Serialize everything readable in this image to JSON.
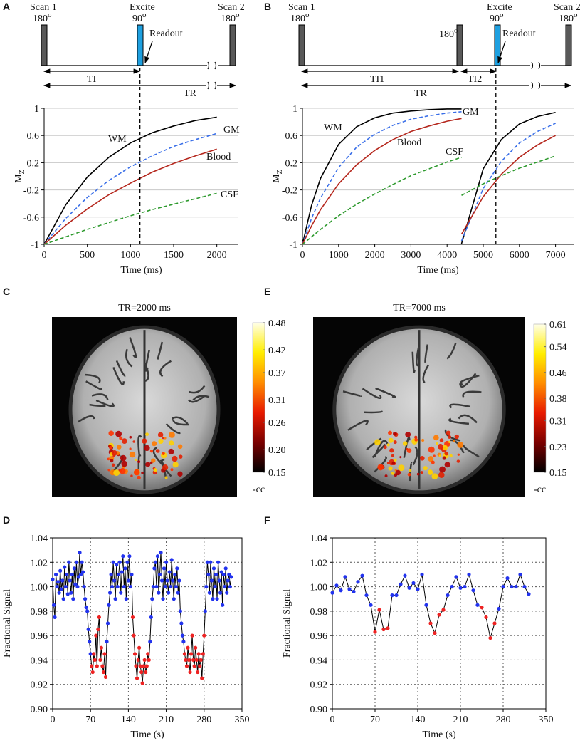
{
  "panel_labels": [
    "A",
    "B",
    "C",
    "E",
    "D",
    "F"
  ],
  "diagrams": [
    {
      "scan1": "Scan 1",
      "scan1_angle": "180",
      "excite": "Excite",
      "excite_angle": "90",
      "readout": "Readout",
      "scan2": "Scan 2",
      "scan2_angle": "180",
      "degree": "o",
      "ti": "TI",
      "tr": "TR"
    },
    {
      "scan1": "Scan 1",
      "scan1_angle": "180",
      "mid_angle": "180",
      "excite": "Excite",
      "excite_angle": "90",
      "readout": "Readout",
      "scan2": "Scan 2",
      "scan2_angle": "180",
      "degree": "o",
      "ti1": "TI1",
      "ti2": "TI2",
      "tr": "TR"
    }
  ],
  "chart_data": [
    {
      "type": "line",
      "x": [
        0,
        250,
        500,
        750,
        1000,
        1250,
        1500,
        1750,
        2000
      ],
      "series": [
        {
          "name": "WM",
          "color": "#000000",
          "dash": false,
          "values": [
            -1,
            -0.42,
            -0.01,
            0.28,
            0.49,
            0.64,
            0.74,
            0.82,
            0.87
          ]
        },
        {
          "name": "GM",
          "color": "#3a6fe8",
          "dash": true,
          "values": [
            -1,
            -0.62,
            -0.31,
            -0.06,
            0.14,
            0.3,
            0.44,
            0.54,
            0.63
          ]
        },
        {
          "name": "Blood",
          "color": "#b5271d",
          "dash": false,
          "values": [
            -1,
            -0.72,
            -0.48,
            -0.27,
            -0.1,
            0.06,
            0.19,
            0.3,
            0.4
          ]
        },
        {
          "name": "CSF",
          "color": "#2e9a2e",
          "dash": true,
          "values": [
            -1,
            -0.89,
            -0.78,
            -0.68,
            -0.58,
            -0.49,
            -0.41,
            -0.33,
            -0.25
          ]
        }
      ],
      "vline": 1110,
      "xlim": [
        0,
        2250
      ],
      "xticks": [
        0,
        500,
        1000,
        1500,
        2000
      ],
      "ylim": [
        -1,
        1
      ],
      "yticks": [
        -1,
        -0.6,
        -0.2,
        0.2,
        0.6,
        1
      ],
      "grid": "y",
      "grid_line": "solid",
      "frame": "axes",
      "xlabel": "Time (ms)",
      "ylabel": "M",
      "ylabel_sub": "Z"
    },
    {
      "type": "line",
      "x": [
        0,
        250,
        500,
        1000,
        1500,
        2000,
        2500,
        3000,
        3500,
        4000,
        4400,
        4400,
        4400,
        5000,
        5500,
        6000,
        6500,
        7000
      ],
      "series": [
        {
          "name": "WM",
          "color": "#000000",
          "dash": false,
          "values": [
            -1,
            -0.43,
            -0.03,
            0.47,
            0.73,
            0.86,
            0.93,
            0.96,
            0.98,
            0.99,
            0.99,
            null,
            -0.99,
            0.11,
            0.54,
            0.77,
            0.88,
            0.94
          ]
        },
        {
          "name": "GM",
          "color": "#3a6fe8",
          "dash": true,
          "values": [
            -1,
            -0.62,
            -0.32,
            0.13,
            0.43,
            0.62,
            0.75,
            0.84,
            0.89,
            0.93,
            0.95,
            null,
            -0.95,
            -0.18,
            0.22,
            0.49,
            0.66,
            0.78
          ]
        },
        {
          "name": "Blood",
          "color": "#b5271d",
          "dash": false,
          "values": [
            -1,
            -0.73,
            -0.49,
            -0.11,
            0.17,
            0.38,
            0.54,
            0.66,
            0.74,
            0.81,
            0.85,
            null,
            -0.85,
            -0.3,
            0.03,
            0.28,
            0.46,
            0.6
          ]
        },
        {
          "name": "CSF",
          "color": "#2e9a2e",
          "dash": true,
          "values": [
            -1,
            -0.89,
            -0.78,
            -0.58,
            -0.41,
            -0.26,
            -0.12,
            0.01,
            0.11,
            0.21,
            0.28,
            null,
            -0.28,
            -0.11,
            0.01,
            0.12,
            0.21,
            0.3
          ]
        }
      ],
      "vline": 5350,
      "xlim": [
        0,
        7500
      ],
      "xticks": [
        0,
        1000,
        2000,
        3000,
        4000,
        5000,
        6000,
        7000
      ],
      "ylim": [
        -1,
        1
      ],
      "yticks": [
        -1,
        -0.6,
        -0.2,
        0.2,
        0.6,
        1
      ],
      "grid": "y",
      "grid_line": "solid",
      "frame": "axes",
      "xlabel": "Time (ms)",
      "ylabel": "M",
      "ylabel_sub": "Z"
    },
    {
      "type": "heatmap",
      "title": "TR=2000 ms",
      "clim": [
        0.15,
        0.48
      ],
      "cticks": [
        0.15,
        {
          "value": 0.2,
          "label": "0.20"
        },
        0.26,
        0.31,
        0.37,
        0.42,
        0.48
      ],
      "clabel": "-cc",
      "colormap": [
        "#000000",
        "#7a0000",
        "#e81a00",
        "#ff8c00",
        "#ffee00",
        "#ffffe8"
      ]
    },
    {
      "type": "heatmap",
      "title": "TR=7000 ms",
      "clim": [
        0.15,
        0.61
      ],
      "cticks": [
        0.15,
        0.23,
        0.31,
        0.38,
        0.46,
        0.54,
        0.61
      ],
      "clabel": "-cc",
      "colormap": [
        "#000000",
        "#7a0000",
        "#e81a00",
        "#ff8c00",
        "#ffee00",
        "#ffffe8"
      ]
    },
    {
      "type": "line",
      "color": "#000000",
      "x": [
        0,
        2,
        4,
        6,
        8,
        10,
        12,
        14,
        16,
        18,
        20,
        22,
        24,
        26,
        28,
        30,
        32,
        34,
        36,
        38,
        40,
        42,
        44,
        46,
        48,
        50,
        52,
        54,
        56,
        58,
        60,
        62,
        64,
        66,
        68,
        70,
        72,
        74,
        76,
        78,
        80,
        82,
        84,
        86,
        88,
        90,
        92,
        94,
        96,
        98,
        100,
        102,
        104,
        106,
        108,
        110,
        112,
        114,
        116,
        118,
        120,
        122,
        124,
        126,
        128,
        130,
        132,
        134,
        136,
        138,
        140,
        142,
        144,
        146,
        148,
        150,
        152,
        154,
        156,
        158,
        160,
        162,
        164,
        166,
        168,
        170,
        172,
        174,
        176,
        178,
        180,
        182,
        184,
        186,
        188,
        190,
        192,
        194,
        196,
        198,
        200,
        202,
        204,
        206,
        208,
        210,
        212,
        214,
        216,
        218,
        220,
        222,
        224,
        226,
        228,
        230,
        232,
        234,
        236,
        238,
        240,
        242,
        244,
        246,
        248,
        250,
        252,
        254,
        256,
        258,
        260,
        262,
        264,
        266,
        268,
        270,
        272,
        274,
        276,
        278,
        280,
        282,
        284,
        286,
        288,
        290,
        292,
        294,
        296,
        298,
        300,
        302,
        304,
        306,
        308,
        310,
        312,
        314,
        316,
        318,
        320,
        322,
        324,
        326,
        328,
        330
      ],
      "values": [
        1.006,
        0.985,
        0.975,
        1.01,
        1.0,
        1.004,
        0.995,
        1.013,
        0.998,
        1.005,
        0.99,
        1.016,
        1.0,
        1.01,
        0.994,
        1.02,
        1.005,
        0.995,
        1.01,
        0.99,
        1.015,
        1.002,
        1.02,
        1.0,
        1.008,
        1.028,
        1.01,
        1.02,
        1.012,
        1.0,
        0.99,
        0.983,
        0.98,
        0.965,
        0.955,
        0.945,
        0.935,
        0.93,
        0.945,
        0.94,
        0.96,
        0.935,
        0.965,
        0.975,
        0.94,
        0.95,
        0.935,
        0.93,
        0.945,
        0.926,
        0.955,
        0.97,
        0.985,
        0.995,
        1.01,
        1.0,
        1.02,
        1.005,
        0.99,
        1.018,
        1.0,
        1.01,
        1.02,
        0.995,
        1.012,
        1.025,
        1.0,
        1.015,
        0.99,
        1.02,
        1.005,
        1.025,
        1.0,
        1.01,
        0.975,
        0.96,
        0.945,
        0.935,
        0.925,
        0.94,
        0.95,
        0.935,
        0.93,
        0.921,
        0.935,
        0.94,
        0.93,
        0.935,
        0.945,
        0.94,
        0.955,
        0.975,
        0.99,
        1.0,
        1.015,
        1.02,
        1.0,
        1.025,
        0.995,
        1.01,
        1.028,
        1.005,
        0.99,
        1.015,
        1.0,
        1.02,
        1.005,
        0.995,
        1.012,
        1.0,
        1.022,
        1.005,
        0.99,
        1.01,
        1.0,
        1.015,
        0.995,
        1.005,
        0.98,
        0.97,
        0.96,
        0.955,
        0.945,
        0.94,
        0.935,
        0.95,
        0.94,
        0.93,
        0.945,
        0.96,
        0.94,
        0.935,
        0.95,
        0.94,
        0.93,
        0.945,
        0.935,
        0.94,
        0.925,
        0.945,
        0.96,
        0.98,
        1.0,
        1.02,
        1.01,
        0.995,
        1.02,
        1.005,
        0.99,
        1.015,
        1.0,
        1.01,
        0.99,
        1.02,
        1.005,
        0.995,
        1.012,
        0.985,
        1.01,
        1.0,
        1.015,
        0.995,
        1.005,
        1.01,
        1.0,
        1.008
      ],
      "point_colors": [
        "#23e",
        "#23e",
        "#23e",
        "#23e",
        "#23e",
        "#23e",
        "#23e",
        "#23e",
        "#23e",
        "#23e",
        "#23e",
        "#23e",
        "#23e",
        "#23e",
        "#23e",
        "#23e",
        "#23e",
        "#23e",
        "#23e",
        "#23e",
        "#23e",
        "#23e",
        "#23e",
        "#23e",
        "#23e",
        "#23e",
        "#23e",
        "#23e",
        "#23e",
        "#23e",
        "#23e",
        "#23e",
        "#23e",
        "#23e",
        "#23e",
        "#23e",
        "#e22",
        "#e22",
        "#e22",
        "#e22",
        "#e22",
        "#e22",
        "#e22",
        "#e22",
        "#e22",
        "#e22",
        "#e22",
        "#e22",
        "#e22",
        "#e22",
        "#23e",
        "#23e",
        "#23e",
        "#23e",
        "#23e",
        "#23e",
        "#23e",
        "#23e",
        "#23e",
        "#23e",
        "#23e",
        "#23e",
        "#23e",
        "#23e",
        "#23e",
        "#23e",
        "#23e",
        "#23e",
        "#23e",
        "#23e",
        "#23e",
        "#23e",
        "#23e",
        "#23e",
        "#e22",
        "#e22",
        "#e22",
        "#e22",
        "#e22",
        "#e22",
        "#e22",
        "#e22",
        "#e22",
        "#e22",
        "#e22",
        "#e22",
        "#e22",
        "#e22",
        "#e22",
        "#e22",
        "#23e",
        "#23e",
        "#23e",
        "#23e",
        "#23e",
        "#23e",
        "#23e",
        "#23e",
        "#23e",
        "#23e",
        "#23e",
        "#23e",
        "#23e",
        "#23e",
        "#23e",
        "#23e",
        "#23e",
        "#23e",
        "#23e",
        "#23e",
        "#23e",
        "#23e",
        "#23e",
        "#23e",
        "#23e",
        "#23e",
        "#23e",
        "#23e",
        "#23e",
        "#23e",
        "#23e",
        "#23e",
        "#e22",
        "#e22",
        "#e22",
        "#e22",
        "#e22",
        "#e22",
        "#e22",
        "#e22",
        "#e22",
        "#e22",
        "#e22",
        "#e22",
        "#e22",
        "#e22",
        "#e22",
        "#e22",
        "#e22",
        "#e22",
        "#e22",
        "#23e",
        "#23e",
        "#23e",
        "#23e",
        "#23e",
        "#23e",
        "#23e",
        "#23e",
        "#23e",
        "#23e",
        "#23e",
        "#23e",
        "#23e",
        "#23e",
        "#23e",
        "#23e",
        "#23e",
        "#23e",
        "#23e",
        "#23e",
        "#23e",
        "#23e",
        "#23e",
        "#23e",
        "#23e"
      ],
      "xlim": [
        0,
        350
      ],
      "xticks": [
        0,
        70,
        140,
        210,
        280,
        350
      ],
      "ylim": [
        0.9,
        1.04
      ],
      "yticks": [
        {
          "value": 0.9,
          "label": "0.90"
        },
        0.92,
        0.94,
        0.96,
        0.98,
        {
          "value": 1,
          "label": "1.00"
        },
        1.02,
        1.04
      ],
      "grid": "both",
      "grid_line": "dotted",
      "frame": "box",
      "xlabel": "Time (s)",
      "ylabel": "Fractional Signal"
    },
    {
      "type": "line",
      "color": "#000000",
      "x": [
        0,
        7,
        14,
        21,
        28,
        35,
        42,
        49,
        56,
        63,
        70,
        77,
        84,
        91,
        98,
        105,
        112,
        119,
        126,
        133,
        140,
        147,
        154,
        161,
        168,
        175,
        182,
        189,
        196,
        203,
        210,
        217,
        224,
        231,
        238,
        245,
        252,
        259,
        266,
        273,
        280,
        287,
        294,
        301,
        308,
        315,
        322
      ],
      "values": [
        0.995,
        1.001,
        0.997,
        1.008,
        0.998,
        0.996,
        1.004,
        1.009,
        0.993,
        0.985,
        0.963,
        0.981,
        0.965,
        0.966,
        0.993,
        0.993,
        1.002,
        1.009,
        0.999,
        1.003,
        0.998,
        1.01,
        0.985,
        0.97,
        0.962,
        0.977,
        0.981,
        0.993,
        1.0,
        1.008,
        0.999,
        1.0,
        1.01,
        0.997,
        0.985,
        0.983,
        0.975,
        0.958,
        0.97,
        0.982,
        1.0,
        1.007,
        1.0,
        1.0,
        1.01,
        1.0,
        0.994
      ],
      "point_colors": [
        "#23e",
        "#23e",
        "#23e",
        "#23e",
        "#23e",
        "#23e",
        "#23e",
        "#23e",
        "#23e",
        "#23e",
        "#e22",
        "#e22",
        "#e22",
        "#e22",
        "#23e",
        "#23e",
        "#23e",
        "#23e",
        "#23e",
        "#23e",
        "#23e",
        "#23e",
        "#23e",
        "#e22",
        "#e22",
        "#e22",
        "#e22",
        "#23e",
        "#23e",
        "#23e",
        "#23e",
        "#23e",
        "#23e",
        "#23e",
        "#23e",
        "#e22",
        "#e22",
        "#e22",
        "#e22",
        "#23e",
        "#23e",
        "#23e",
        "#23e",
        "#23e",
        "#23e",
        "#23e",
        "#23e"
      ],
      "xlim": [
        0,
        350
      ],
      "xticks": [
        0,
        70,
        140,
        210,
        280,
        350
      ],
      "ylim": [
        0.9,
        1.04
      ],
      "yticks": [
        {
          "value": 0.9,
          "label": "0.90"
        },
        0.92,
        0.94,
        0.96,
        0.98,
        {
          "value": 1,
          "label": "1.00"
        },
        1.02,
        1.04
      ],
      "grid": "both",
      "grid_line": "dotted",
      "frame": "box",
      "xlabel": "Time (s)",
      "ylabel": "Fractional Signal"
    }
  ]
}
